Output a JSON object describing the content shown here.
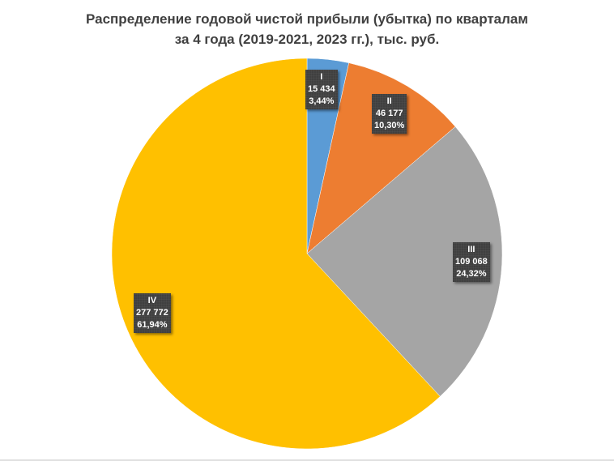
{
  "chart_data": {
    "type": "pie",
    "title": "Распределение годовой чистой прибыли (убытка) по кварталам за 4 года (2019-2021, 2023 гг.), тыс. руб.",
    "title_lines": [
      "Распределение годовой чистой прибыли (убытка) по кварталам",
      "за 4 года (2019-2021, 2023 гг.), тыс. руб."
    ],
    "categories": [
      "I",
      "II",
      "III",
      "IV"
    ],
    "values": [
      15434,
      46177,
      109068,
      277772
    ],
    "percentages": [
      3.44,
      10.3,
      24.32,
      61.94
    ],
    "colors": [
      "#5B9BD5",
      "#ED7D31",
      "#A5A5A5",
      "#FFC000"
    ],
    "legend": "none",
    "data_labels": [
      {
        "category": "I",
        "value": "15 434",
        "percent": "3,44%"
      },
      {
        "category": "II",
        "value": "46 177",
        "percent": "10,30%"
      },
      {
        "category": "III",
        "value": "109 068",
        "percent": "24,32%"
      },
      {
        "category": "IV",
        "value": "277 772",
        "percent": "61,94%"
      }
    ],
    "start_angle_deg": 0,
    "direction": "clockwise"
  }
}
